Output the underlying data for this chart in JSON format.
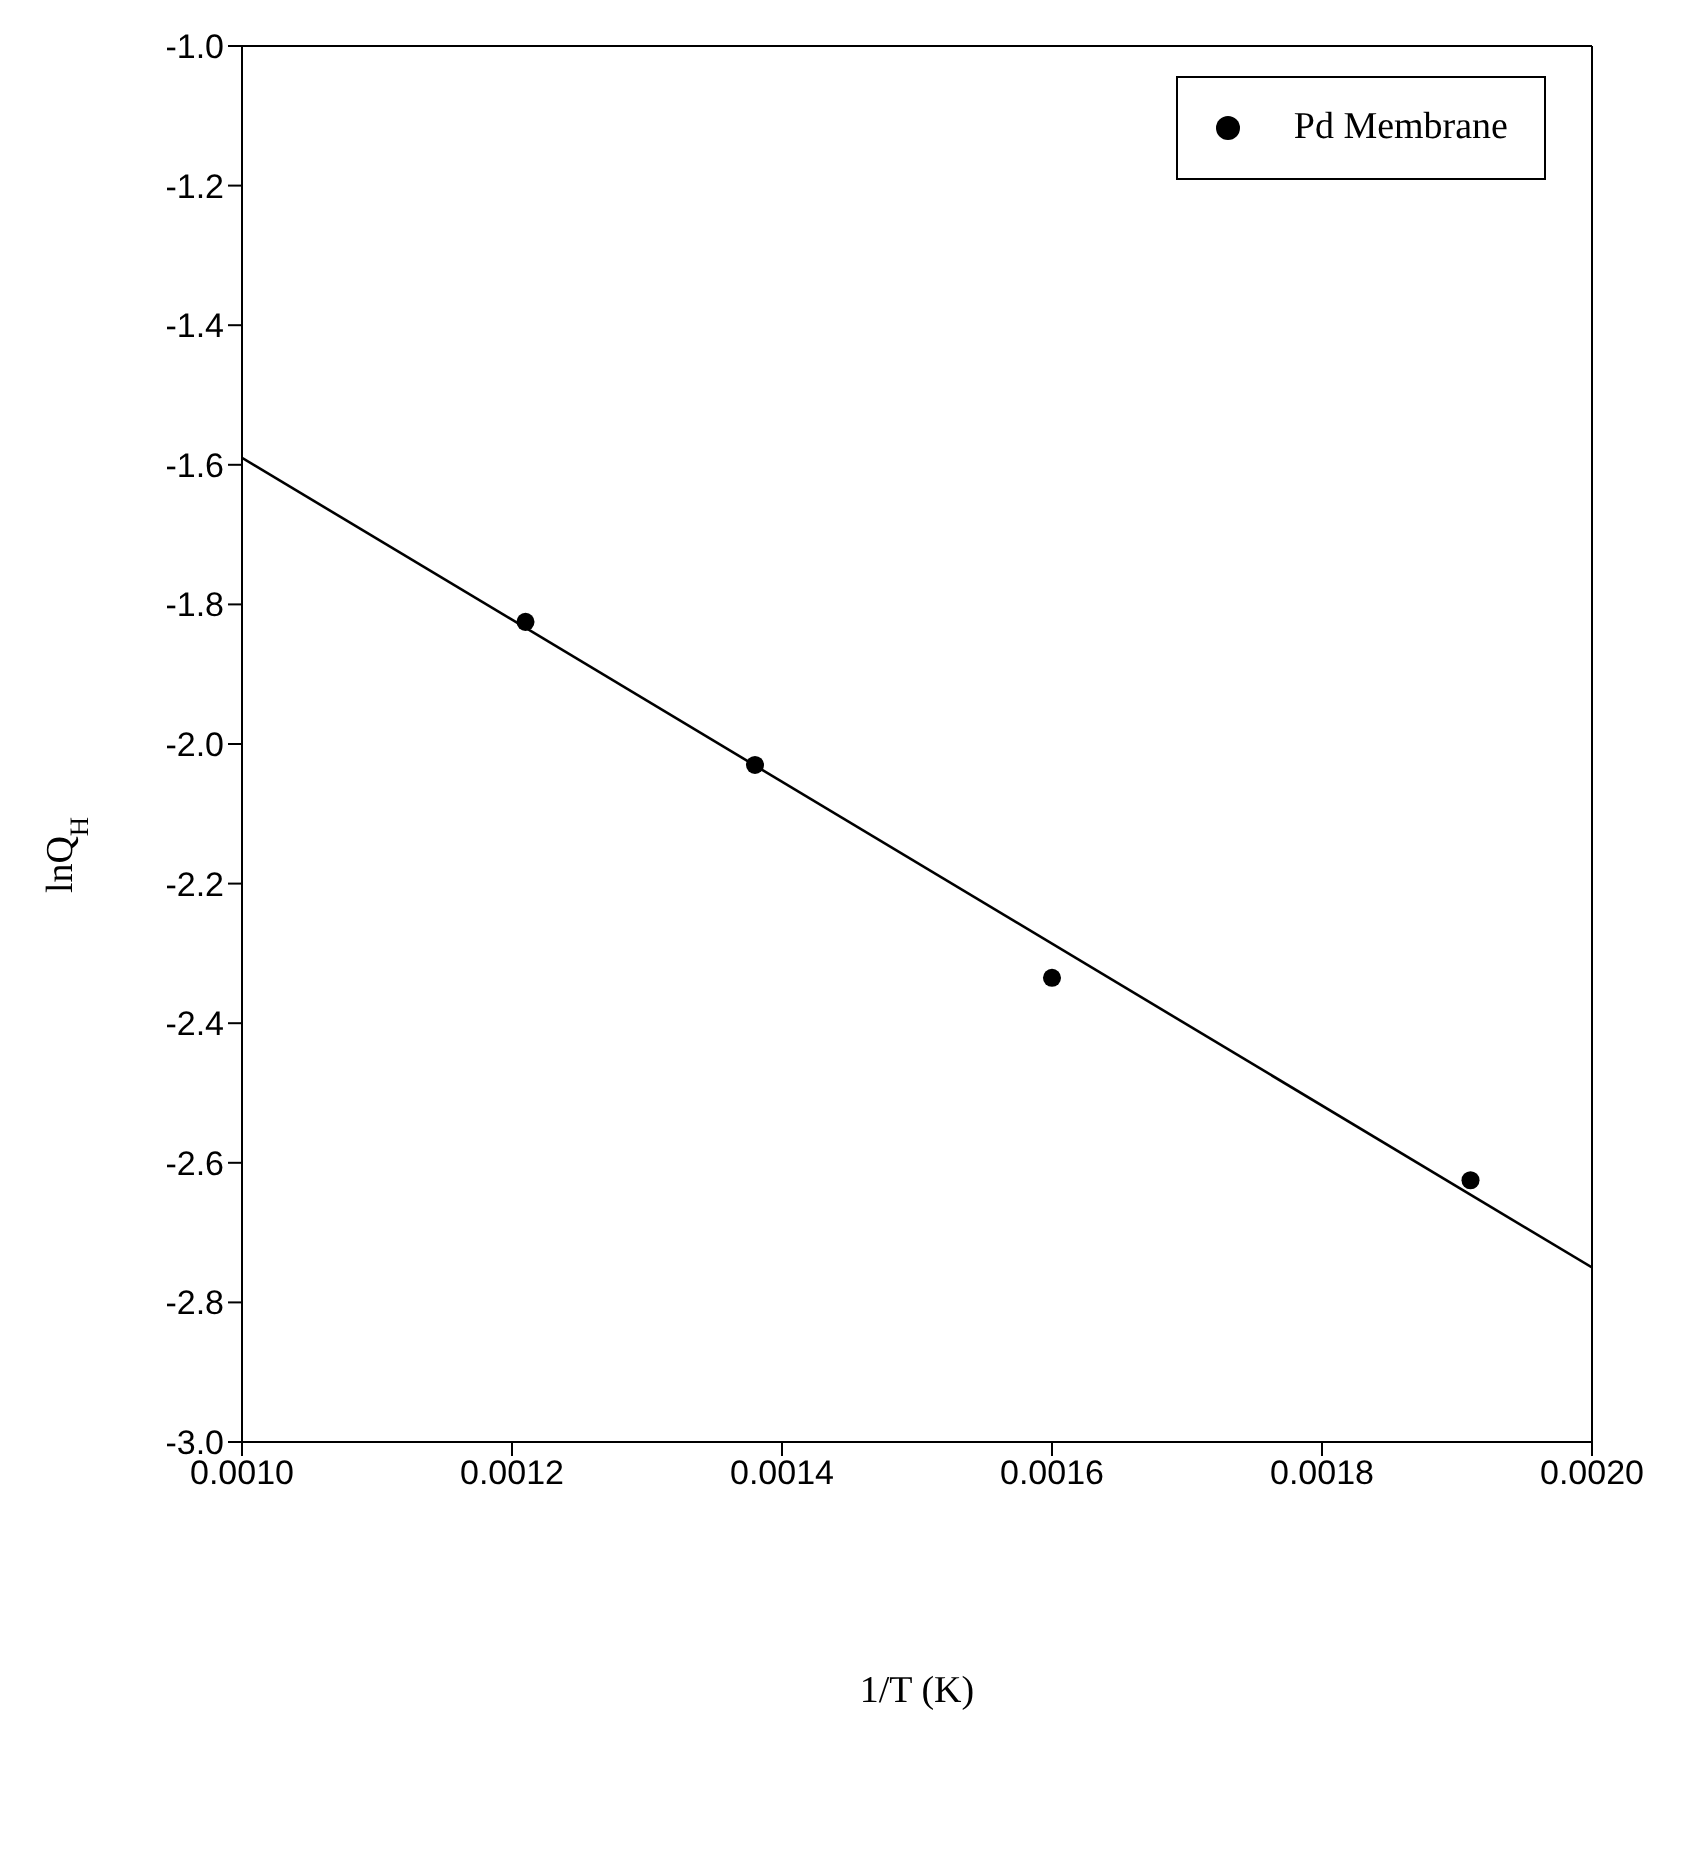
{
  "chart_data": {
    "type": "scatter",
    "xlabel": "1/T (K)",
    "ylabel": "lnQ$_{H}$",
    "xlim": [
      0.001,
      0.002
    ],
    "xticks": [
      {
        "value": 0.001,
        "label": "0.0010"
      },
      {
        "value": 0.0012,
        "label": "0.0012"
      },
      {
        "value": 0.0014,
        "label": "0.0014"
      },
      {
        "value": 0.0016,
        "label": "0.0016"
      },
      {
        "value": 0.0018,
        "label": "0.0018"
      },
      {
        "value": 0.002,
        "label": "0.0020"
      }
    ],
    "ylim": [
      -3.0,
      -1.0
    ],
    "yticks": [
      {
        "value": -3.0,
        "label": "-3.0"
      },
      {
        "value": -2.8,
        "label": "-2.8"
      },
      {
        "value": -2.6,
        "label": "-2.6"
      },
      {
        "value": -2.4,
        "label": "-2.4"
      },
      {
        "value": -2.2,
        "label": "-2.2"
      },
      {
        "value": -2.0,
        "label": "-2.0"
      },
      {
        "value": -1.8,
        "label": "-1.8"
      },
      {
        "value": -1.6,
        "label": "-1.6"
      },
      {
        "value": -1.4,
        "label": "-1.4"
      },
      {
        "value": -1.2,
        "label": "-1.2"
      },
      {
        "value": -1.0,
        "label": "-1.0"
      }
    ],
    "series": [
      {
        "name": "Pd Membrane",
        "color": "#000000",
        "marker": "circle",
        "x": [
          0.00121,
          0.00138,
          0.0016,
          0.00191
        ],
        "values": [
          -1.825,
          -2.03,
          -2.335,
          -2.625
        ]
      },
      {
        "type": "line",
        "color": "#000000",
        "line_style": "solid",
        "marker": "none",
        "x": [
          0.001,
          0.002
        ],
        "values": [
          -1.59,
          -2.75
        ]
      }
    ],
    "grid": false,
    "legend": "top right"
  }
}
